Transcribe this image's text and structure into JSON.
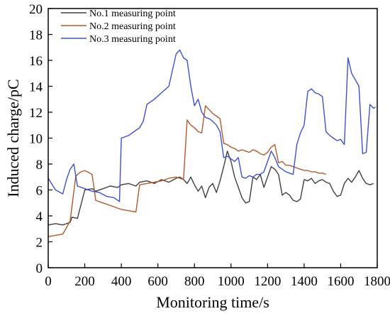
{
  "chart_data": {
    "type": "line",
    "title": "",
    "xlabel": "Monitoring time/s",
    "ylabel": "Induced charge/pC",
    "xlim": [
      0,
      1800
    ],
    "ylim": [
      0,
      20
    ],
    "xticks": [
      0,
      200,
      400,
      600,
      800,
      1000,
      1200,
      1400,
      1600,
      1800
    ],
    "yticks": [
      0,
      2,
      4,
      6,
      8,
      10,
      12,
      14,
      16,
      18,
      20
    ],
    "grid": false,
    "legend_position": "top-left",
    "series": [
      {
        "name": "No.1 measuring point",
        "color": "#3f3f3f",
        "x": [
          0,
          40,
          80,
          120,
          130,
          160,
          200,
          240,
          260,
          300,
          340,
          380,
          400,
          440,
          480,
          500,
          540,
          580,
          620,
          660,
          700,
          720,
          740,
          760,
          780,
          800,
          820,
          840,
          860,
          880,
          900,
          920,
          940,
          960,
          980,
          1000,
          1020,
          1040,
          1060,
          1080,
          1100,
          1120,
          1140,
          1160,
          1180,
          1200,
          1220,
          1240,
          1260,
          1280,
          1300,
          1320,
          1340,
          1360,
          1380,
          1400,
          1420,
          1440,
          1460,
          1480,
          1500,
          1520,
          1540,
          1560,
          1580,
          1600,
          1620,
          1640,
          1660,
          1680,
          1700,
          1720,
          1740,
          1760,
          1780
        ],
        "y": [
          3.3,
          3.4,
          3.3,
          3.5,
          3.9,
          3.8,
          6.0,
          6.1,
          5.9,
          6.1,
          6.3,
          6.2,
          6.4,
          6.5,
          6.3,
          6.6,
          6.7,
          6.5,
          6.8,
          6.6,
          6.9,
          7.0,
          6.8,
          6.5,
          7.0,
          6.4,
          5.9,
          6.3,
          5.4,
          6.2,
          6.5,
          5.8,
          6.7,
          7.8,
          9.0,
          8.2,
          7.0,
          6.2,
          5.4,
          5.0,
          5.1,
          7.0,
          6.8,
          7.2,
          6.2,
          7.0,
          7.8,
          7.6,
          7.2,
          5.6,
          5.8,
          5.6,
          5.2,
          5.1,
          5.3,
          6.8,
          6.7,
          6.9,
          6.5,
          6.7,
          6.8,
          6.6,
          6.5,
          5.9,
          5.5,
          5.6,
          6.5,
          6.9,
          6.6,
          7.0,
          7.5,
          6.9,
          6.5,
          6.4,
          6.5
        ]
      },
      {
        "name": "No.2 measuring point",
        "color": "#b5582a",
        "x": [
          0,
          40,
          80,
          120,
          150,
          160,
          180,
          200,
          240,
          260,
          300,
          340,
          380,
          400,
          440,
          480,
          500,
          540,
          580,
          620,
          660,
          700,
          720,
          740,
          760,
          780,
          800,
          820,
          840,
          860,
          880,
          900,
          920,
          940,
          960,
          980,
          1000,
          1020,
          1040,
          1060,
          1080,
          1100,
          1120,
          1140,
          1160,
          1180,
          1200,
          1220,
          1240,
          1260,
          1280,
          1300,
          1320,
          1340,
          1360,
          1380,
          1400,
          1420,
          1440,
          1460,
          1480,
          1500,
          1520
        ],
        "y": [
          2.4,
          2.5,
          2.6,
          3.6,
          7.0,
          7.2,
          7.4,
          7.5,
          7.2,
          5.2,
          5.0,
          4.8,
          4.6,
          4.5,
          4.4,
          4.3,
          6.4,
          6.5,
          6.6,
          6.7,
          6.9,
          7.0,
          6.9,
          6.8,
          11.4,
          11.0,
          10.8,
          10.5,
          10.4,
          12.5,
          12.2,
          11.9,
          11.7,
          11.5,
          9.6,
          9.5,
          9.3,
          9.2,
          9.0,
          9.1,
          9.0,
          8.9,
          9.1,
          9.0,
          8.8,
          8.7,
          8.9,
          9.3,
          9.5,
          8.1,
          8.2,
          7.9,
          7.9,
          7.8,
          7.7,
          7.6,
          7.5,
          7.5,
          7.4,
          7.4,
          7.3,
          7.3,
          7.2
        ]
      },
      {
        "name": "No.3 measuring point",
        "color": "#3c50d6",
        "x": [
          0,
          40,
          80,
          100,
          120,
          140,
          160,
          200,
          240,
          280,
          320,
          360,
          380,
          390,
          400,
          440,
          480,
          500,
          520,
          540,
          580,
          620,
          660,
          700,
          720,
          740,
          760,
          780,
          800,
          820,
          840,
          860,
          880,
          900,
          920,
          940,
          960,
          980,
          1000,
          1020,
          1040,
          1060,
          1080,
          1100,
          1120,
          1140,
          1160,
          1180,
          1200,
          1220,
          1240,
          1260,
          1280,
          1300,
          1320,
          1340,
          1360,
          1380,
          1400,
          1420,
          1440,
          1460,
          1480,
          1500,
          1520,
          1540,
          1560,
          1580,
          1600,
          1620,
          1640,
          1650,
          1660,
          1680,
          1700,
          1720,
          1740,
          1760,
          1780,
          1790
        ],
        "y": [
          6.9,
          6.0,
          5.7,
          6.8,
          7.6,
          8.0,
          6.3,
          6.1,
          5.9,
          5.8,
          5.5,
          5.4,
          5.2,
          5.1,
          10.0,
          10.2,
          10.6,
          10.8,
          11.3,
          12.6,
          13.0,
          13.5,
          14.0,
          16.5,
          16.8,
          16.2,
          16.0,
          14.0,
          12.5,
          13.0,
          12.0,
          11.6,
          11.5,
          11.3,
          11.0,
          10.5,
          8.5,
          8.6,
          8.4,
          8.2,
          8.5,
          7.0,
          6.9,
          7.1,
          7.0,
          7.2,
          7.2,
          7.4,
          8.2,
          9.0,
          8.5,
          7.8,
          7.6,
          7.4,
          7.3,
          7.2,
          9.5,
          10.4,
          11.0,
          13.6,
          13.8,
          13.5,
          13.4,
          13.2,
          10.5,
          10.2,
          10.0,
          9.8,
          9.9,
          9.5,
          16.2,
          15.6,
          15.0,
          14.5,
          14.0,
          8.8,
          8.9,
          12.6,
          12.3,
          12.4
        ]
      }
    ]
  }
}
